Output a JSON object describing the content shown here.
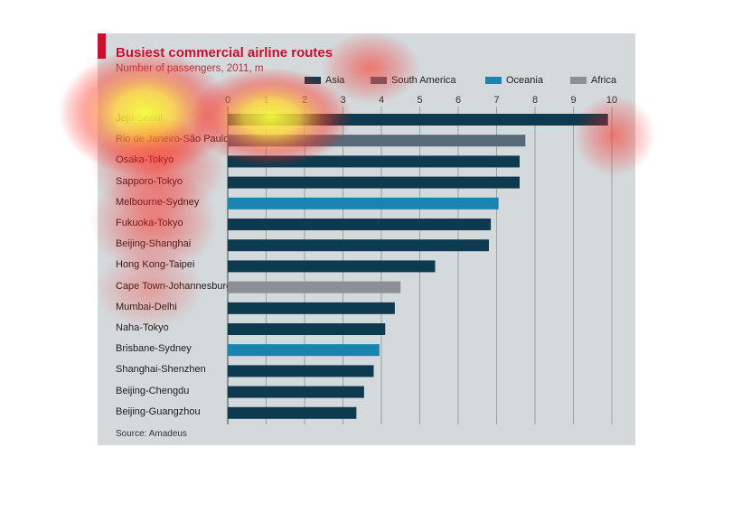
{
  "title": "Busiest commercial airline routes",
  "subtitle": "Number of passengers, 2011, m",
  "source": "Source: Amadeus",
  "legend": [
    {
      "name": "Asia",
      "color": "#0e3a4f"
    },
    {
      "name": "South America",
      "color": "#566a7a"
    },
    {
      "name": "Oceania",
      "color": "#1a84b0"
    },
    {
      "name": "Africa",
      "color": "#8c8f93"
    }
  ],
  "colors": {
    "Asia": "#0e3a4f",
    "South America": "#566a7a",
    "Oceania": "#1a84b0",
    "Africa": "#8c8f93",
    "accent": "#c8102e",
    "panel": "#d4d9dc"
  },
  "chart_data": {
    "type": "bar",
    "orientation": "horizontal",
    "xlim": [
      0,
      10
    ],
    "ticks": [
      "0",
      "1",
      "2",
      "3",
      "4",
      "5",
      "6",
      "7",
      "8",
      "9",
      "10"
    ],
    "categories": [
      "Jeju-Seoul",
      "Rio de Janeiro-São Paulo",
      "Osaka-Tokyo",
      "Sapporo-Tokyo",
      "Melbourne-Sydney",
      "Fukuoka-Tokyo",
      "Beijing-Shanghai",
      "Hong Kong-Taipei",
      "Cape Town-Johannesburg",
      "Mumbai-Delhi",
      "Naha-Tokyo",
      "Brisbane-Sydney",
      "Shanghai-Shenzhen",
      "Beijing-Chengdu",
      "Beijing-Guangzhou"
    ],
    "regions": [
      "Asia",
      "South America",
      "Asia",
      "Asia",
      "Oceania",
      "Asia",
      "Asia",
      "Asia",
      "Africa",
      "Asia",
      "Asia",
      "Oceania",
      "Asia",
      "Asia",
      "Asia"
    ],
    "values": [
      9.9,
      7.75,
      7.6,
      7.6,
      7.05,
      6.85,
      6.8,
      5.4,
      4.5,
      4.35,
      4.1,
      3.95,
      3.8,
      3.55,
      3.35
    ],
    "grid": true,
    "legend_position": "top"
  }
}
